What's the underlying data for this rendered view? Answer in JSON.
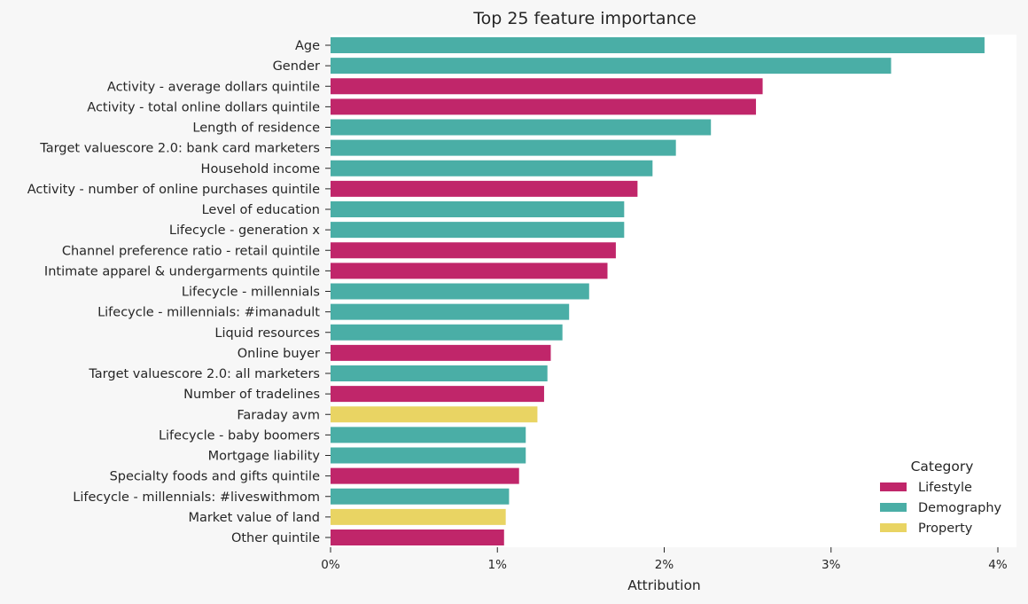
{
  "chart_data": {
    "type": "bar",
    "orientation": "horizontal",
    "title": "Top 25 feature importance",
    "xlabel": "Attribution",
    "ylabel": "",
    "xlim": [
      0,
      4
    ],
    "x_ticks": [
      0,
      1,
      2,
      3,
      4
    ],
    "x_tick_labels": [
      "0%",
      "1%",
      "2%",
      "3%",
      "4%"
    ],
    "value_unit": "percent",
    "grid": false,
    "legend": {
      "title": "Category",
      "position": "bottom-right",
      "entries": [
        {
          "name": "Lifestyle",
          "color": "#c0266a"
        },
        {
          "name": "Demography",
          "color": "#4aaea6"
        },
        {
          "name": "Property",
          "color": "#e9d463"
        }
      ]
    },
    "categories": [
      "Age",
      "Gender",
      "Activity - average dollars quintile",
      "Activity - total online dollars quintile",
      "Length of residence",
      "Target valuescore 2.0: bank card marketers",
      "Household income",
      "Activity - number of online purchases quintile",
      "Level of education",
      "Lifecycle - generation x",
      "Channel preference ratio - retail quintile",
      "Intimate apparel & undergarments quintile",
      "Lifecycle - millennials",
      "Lifecycle - millennials: #imanadult",
      "Liquid resources",
      "Online buyer",
      "Target valuescore 2.0: all marketers",
      "Number of tradelines",
      "Faraday avm",
      "Lifecycle - baby boomers",
      "Mortgage liability",
      "Specialty foods and gifts quintile",
      "Lifecycle - millennials: #liveswithmom",
      "Market value of land",
      "Other quintile"
    ],
    "values": [
      3.92,
      3.36,
      2.59,
      2.55,
      2.28,
      2.07,
      1.93,
      1.84,
      1.76,
      1.76,
      1.71,
      1.66,
      1.55,
      1.43,
      1.39,
      1.32,
      1.3,
      1.28,
      1.24,
      1.17,
      1.17,
      1.13,
      1.07,
      1.05,
      1.04
    ],
    "bar_category": [
      "Demography",
      "Demography",
      "Lifestyle",
      "Lifestyle",
      "Demography",
      "Demography",
      "Demography",
      "Lifestyle",
      "Demography",
      "Demography",
      "Lifestyle",
      "Lifestyle",
      "Demography",
      "Demography",
      "Demography",
      "Lifestyle",
      "Demography",
      "Lifestyle",
      "Property",
      "Demography",
      "Demography",
      "Lifestyle",
      "Demography",
      "Property",
      "Lifestyle"
    ]
  }
}
